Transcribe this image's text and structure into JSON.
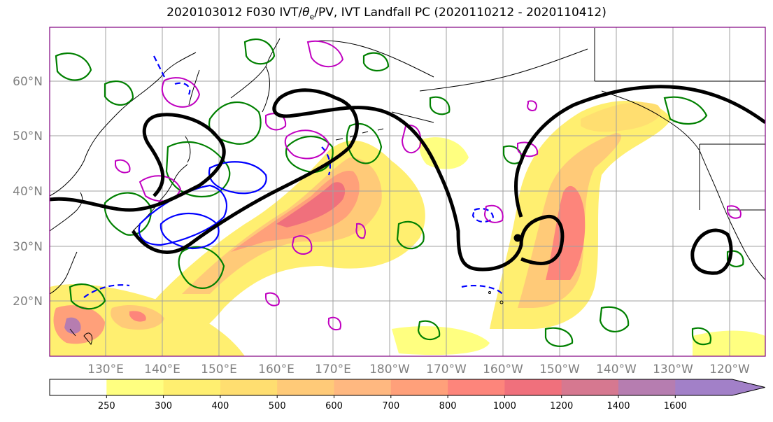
{
  "title": {
    "prefix": "2020103012 F030 IVT/",
    "theta": "θ",
    "theta_sub": "e",
    "suffix": "/PV, IVT Landfall PC (2020110212 - 2020110412)"
  },
  "lat_labels": [
    "60°N",
    "50°N",
    "40°N",
    "30°N",
    "20°N"
  ],
  "lon_labels": [
    "130°E",
    "140°E",
    "150°E",
    "160°E",
    "170°E",
    "180°W",
    "170°W",
    "160°W",
    "150°W",
    "140°W",
    "130°W",
    "120°W"
  ],
  "colorbar": {
    "levels": [
      "250",
      "300",
      "400",
      "500",
      "600",
      "700",
      "800",
      "1000",
      "1200",
      "1400",
      "1600"
    ],
    "colors": [
      "#ffffff",
      "#ffff80",
      "#ffef70",
      "#ffde70",
      "#ffca78",
      "#ffb880",
      "#ffa07a",
      "#fd857b",
      "#f0707c",
      "#d67890",
      "#b67db0",
      "#a280c8"
    ]
  },
  "colors": {
    "theta_e_contour": "#008000",
    "pv_contour": "#0000ff",
    "pc_contour": "#c000c0",
    "landfall_contour": "#000000",
    "coastline": "#000000",
    "grid": "#a0a0a0"
  }
}
